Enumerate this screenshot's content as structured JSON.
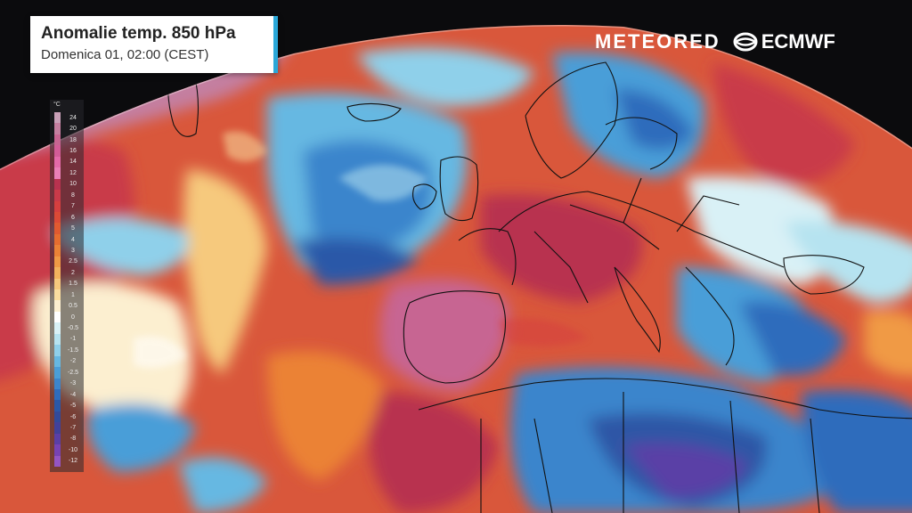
{
  "header": {
    "title": "Anomalie temp. 850 hPa",
    "subtitle": "Domenica 01, 02:00 (CEST)"
  },
  "brand": {
    "meteored": "METEORED",
    "ecmwf": "ECMWF",
    "ecmwf_icon": "ecmwf-swirl-icon",
    "accent_color": "#2aa7d8"
  },
  "legend": {
    "unit": "°C",
    "items": [
      {
        "label": "24",
        "color": "#c9a0b8"
      },
      {
        "label": "20",
        "color": "#c47fa0"
      },
      {
        "label": "18",
        "color": "#c76592"
      },
      {
        "label": "16",
        "color": "#d35c97"
      },
      {
        "label": "14",
        "color": "#e46aa9"
      },
      {
        "label": "12",
        "color": "#ea7fb7"
      },
      {
        "label": "10",
        "color": "#b8324f"
      },
      {
        "label": "8",
        "color": "#c93a49"
      },
      {
        "label": "7",
        "color": "#d63f3f"
      },
      {
        "label": "6",
        "color": "#dc4a36"
      },
      {
        "label": "5",
        "color": "#e05a30"
      },
      {
        "label": "4",
        "color": "#e66d2f"
      },
      {
        "label": "3",
        "color": "#eb8236"
      },
      {
        "label": "2.5",
        "color": "#f09a45"
      },
      {
        "label": "2",
        "color": "#f3b25d"
      },
      {
        "label": "1.5",
        "color": "#f6c97d"
      },
      {
        "label": "1",
        "color": "#f9dd9f"
      },
      {
        "label": "0.5",
        "color": "#fcefd0"
      },
      {
        "label": "0",
        "color": "#ffffff"
      },
      {
        "label": "-0.5",
        "color": "#d9f1f6"
      },
      {
        "label": "-1",
        "color": "#b6e3f0"
      },
      {
        "label": "-1.5",
        "color": "#8fd0ea"
      },
      {
        "label": "-2",
        "color": "#66b8e2"
      },
      {
        "label": "-2.5",
        "color": "#4a9ed8"
      },
      {
        "label": "-3",
        "color": "#3b85cc"
      },
      {
        "label": "-4",
        "color": "#2f6cbc"
      },
      {
        "label": "-5",
        "color": "#2a58a8"
      },
      {
        "label": "-6",
        "color": "#314a9a"
      },
      {
        "label": "-7",
        "color": "#41419a"
      },
      {
        "label": "-8",
        "color": "#5a3fa6"
      },
      {
        "label": "-10",
        "color": "#7743b4"
      },
      {
        "label": "-12",
        "color": "#9455c4"
      }
    ]
  },
  "colors": {
    "background": "#0b0b0d",
    "warm_strong": "#c93a49",
    "warm_mid": "#e05a30",
    "warm_light": "#f09a45",
    "neutral": "#fcefd0",
    "cold_light": "#8fd0ea",
    "cold_mid": "#3b85cc",
    "cold_strong": "#2f56a6",
    "cold_purple": "#5a3fa6",
    "pink": "#d35c97",
    "borders": "#111111"
  }
}
